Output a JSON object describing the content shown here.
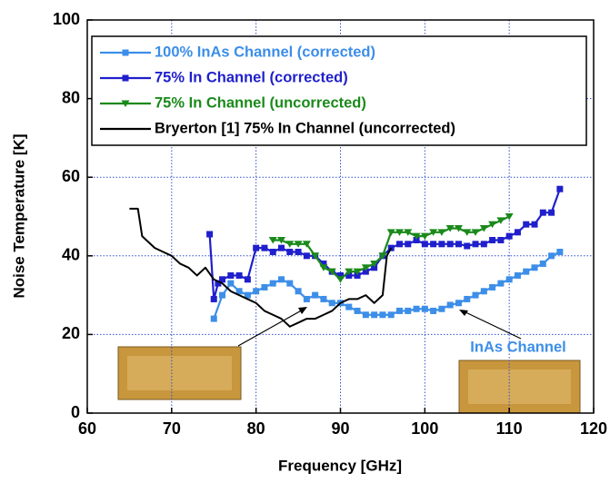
{
  "chart_data": {
    "type": "line",
    "x_label": "Frequency [GHz]",
    "y_label": "Noise Temperature [K]",
    "xlim": [
      60,
      120
    ],
    "ylim": [
      0,
      100
    ],
    "xticks": [
      60,
      70,
      80,
      90,
      100,
      110,
      120
    ],
    "yticks": [
      0,
      20,
      40,
      60,
      80,
      100
    ],
    "grid": true,
    "legend": "upper left",
    "annotation": "InAs Channel",
    "series": [
      {
        "name": "100% InAs Channel (corrected)",
        "color": "#3c8ee8",
        "marker": "square",
        "x": [
          75,
          76,
          77,
          78,
          79,
          80,
          81,
          82,
          83,
          84,
          85,
          86,
          87,
          88,
          89,
          90,
          91,
          92,
          93,
          94,
          95,
          96,
          97,
          98,
          99,
          100,
          101,
          102,
          103,
          104,
          105,
          106,
          107,
          108,
          109,
          110,
          111,
          112,
          113,
          114,
          115,
          116
        ],
        "values": [
          24,
          30,
          33,
          31,
          30,
          31,
          32,
          33,
          34,
          33,
          31,
          29,
          30,
          29,
          28,
          28,
          27,
          26,
          25,
          25,
          25,
          25,
          26,
          26,
          26.5,
          26.5,
          26,
          26.5,
          27.5,
          28,
          29,
          30,
          31,
          32,
          33,
          34,
          35,
          36,
          37,
          38,
          40,
          41
        ]
      },
      {
        "name": "75% In Channel (corrected)",
        "color": "#1f1fcc",
        "marker": "square",
        "x": [
          74.5,
          75,
          75.5,
          76,
          77,
          78,
          79,
          80,
          81,
          82,
          83,
          84,
          85,
          86,
          87,
          88,
          89,
          90,
          91,
          92,
          93,
          94,
          95,
          96,
          97,
          98,
          99,
          100,
          101,
          102,
          103,
          104,
          105,
          106,
          107,
          108,
          109,
          110,
          111,
          112,
          113,
          114,
          115,
          116
        ],
        "values": [
          45.5,
          29,
          33,
          34,
          35,
          35,
          34,
          42,
          42,
          41,
          42,
          41,
          41,
          40,
          40,
          38,
          36,
          35,
          35,
          35,
          36,
          37,
          40,
          42,
          43,
          43,
          44,
          43,
          43,
          43,
          43,
          43,
          42.5,
          43,
          43,
          44,
          44,
          45,
          46,
          48,
          48,
          51,
          51,
          57
        ]
      },
      {
        "name": "75% In Channel (uncorrected)",
        "color": "#1a8a1a",
        "marker": "triangle",
        "x": [
          82,
          83,
          84,
          85,
          86,
          87,
          88,
          89,
          90,
          91,
          92,
          93,
          94,
          95,
          96,
          97,
          98,
          99,
          100,
          101,
          102,
          103,
          104,
          105,
          106,
          107,
          108,
          109,
          110
        ],
        "values": [
          44,
          44,
          43,
          43,
          43,
          40,
          37,
          36,
          34,
          36,
          36,
          37,
          38,
          40,
          46,
          46,
          46,
          45,
          45,
          46,
          46,
          47,
          47,
          46,
          46,
          47,
          48,
          49,
          50
        ]
      },
      {
        "name": "Bryerton  [1]  75% In Channel (uncorrected)",
        "color": "#000000",
        "marker": "none",
        "x": [
          65,
          66,
          66.5,
          67,
          68,
          69,
          70,
          71,
          72,
          73,
          74,
          75,
          76,
          77,
          78,
          79,
          80,
          81,
          82,
          83,
          84,
          85,
          86,
          87,
          88,
          89,
          90,
          91,
          92,
          93,
          94,
          95,
          95.5,
          96
        ],
        "values": [
          52,
          52,
          45,
          44,
          42,
          41,
          40,
          38,
          37,
          35,
          37,
          34,
          33,
          31,
          30,
          29,
          28,
          26,
          25,
          24,
          22,
          23,
          24,
          24,
          25,
          26,
          28,
          29,
          29,
          30,
          28,
          30,
          40,
          42
        ]
      }
    ]
  }
}
